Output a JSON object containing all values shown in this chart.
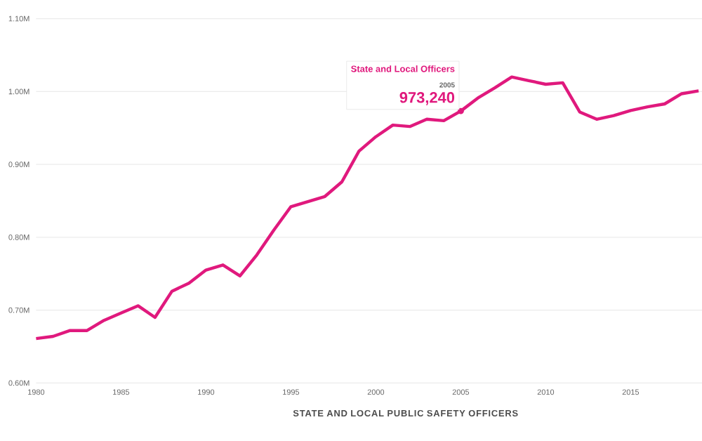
{
  "chart_data": {
    "type": "line",
    "xlabel": "STATE AND LOCAL PUBLIC SAFETY OFFICERS",
    "x": [
      1980,
      1981,
      1982,
      1983,
      1984,
      1985,
      1986,
      1987,
      1988,
      1989,
      1990,
      1991,
      1992,
      1993,
      1994,
      1995,
      1996,
      1997,
      1998,
      1999,
      2000,
      2001,
      2002,
      2003,
      2004,
      2005,
      2006,
      2007,
      2008,
      2009,
      2010,
      2011,
      2012,
      2013,
      2014,
      2015,
      2016,
      2017,
      2018,
      2019
    ],
    "series": [
      {
        "color": "#e0197d",
        "values": [
          661000,
          664000,
          672000,
          672000,
          686000,
          696000,
          706000,
          690000,
          726000,
          737000,
          755000,
          762000,
          747000,
          776000,
          810000,
          842000,
          849000,
          856000,
          876000,
          918000,
          938000,
          954000,
          952000,
          962000,
          960000,
          973240,
          991000,
          1005000,
          1020000,
          1015000,
          1010000,
          1012000,
          972000,
          962000,
          967000,
          974000,
          979000,
          983000,
          997000,
          1001000
        ],
        "value_labels": [
          null,
          null,
          null,
          null,
          null,
          null,
          null,
          null,
          null,
          null,
          null,
          null,
          null,
          null,
          null,
          null,
          null,
          null,
          null,
          null,
          null,
          null,
          null,
          null,
          null,
          "973,240",
          null,
          null,
          null,
          null,
          null,
          null,
          null,
          null,
          null,
          null,
          null,
          null,
          null,
          null
        ]
      }
    ],
    "annotations": [
      "State and Local Officers",
      "2005"
    ],
    "xlim": [
      1980,
      2019.2
    ],
    "ylim": [
      600000,
      1100000
    ],
    "xticks": [
      1980,
      1985,
      1990,
      1995,
      2000,
      2005,
      2010,
      2015
    ],
    "yticks": [
      {
        "value": 600000,
        "label": "0.60M"
      },
      {
        "value": 700000,
        "label": "0.70M"
      },
      {
        "value": 800000,
        "label": "0.80M"
      },
      {
        "value": 900000,
        "label": "0.90M"
      },
      {
        "value": 1000000,
        "label": "1.00M"
      },
      {
        "value": 1100000,
        "label": "1.10M"
      }
    ],
    "grid": "y"
  }
}
